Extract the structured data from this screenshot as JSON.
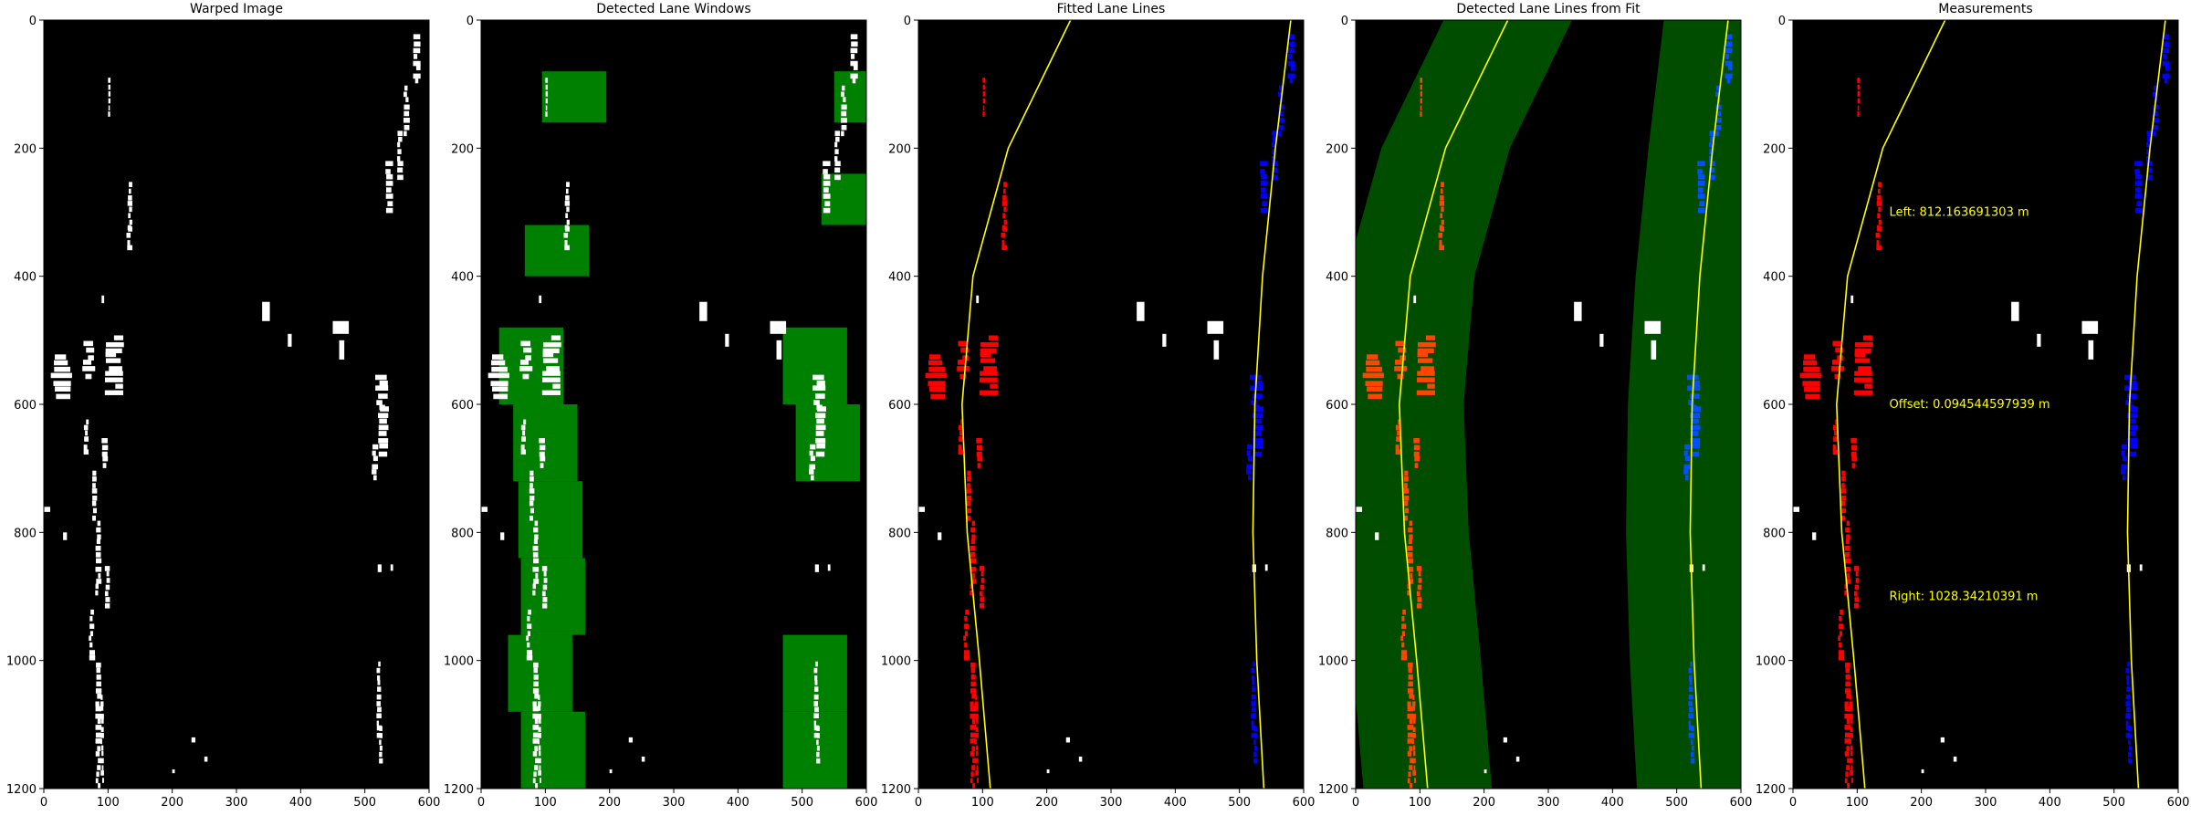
{
  "chart_data": [
    {
      "type": "image",
      "title": "Warped Image",
      "xlim": [
        0,
        600
      ],
      "ylim": [
        1200,
        0
      ],
      "xticks": [
        0,
        100,
        200,
        300,
        400,
        500,
        600
      ],
      "yticks": [
        0,
        200,
        400,
        600,
        800,
        1000,
        1200
      ]
    },
    {
      "type": "image",
      "title": "Detected Lane Windows",
      "xlim": [
        0,
        600
      ],
      "ylim": [
        1200,
        0
      ],
      "xticks": [
        0,
        100,
        200,
        300,
        400,
        500,
        600
      ],
      "yticks": [
        0,
        200,
        400,
        600,
        800,
        1000,
        1200
      ],
      "window_color": "#008000",
      "windows": [
        {
          "lane": "left",
          "x": [
            28,
            128
          ],
          "y": [
            480,
            600
          ]
        },
        {
          "lane": "left",
          "x": [
            50,
            150
          ],
          "y": [
            600,
            720
          ]
        },
        {
          "lane": "left",
          "x": [
            58,
            158
          ],
          "y": [
            720,
            840
          ]
        },
        {
          "lane": "left",
          "x": [
            62,
            162
          ],
          "y": [
            840,
            960
          ]
        },
        {
          "lane": "left",
          "x": [
            42,
            142
          ],
          "y": [
            960,
            1080
          ]
        },
        {
          "lane": "left",
          "x": [
            62,
            162
          ],
          "y": [
            1080,
            1200
          ]
        },
        {
          "lane": "left",
          "x": [
            95,
            195
          ],
          "y": [
            80,
            160
          ]
        },
        {
          "lane": "left",
          "x": [
            68,
            168
          ],
          "y": [
            320,
            400
          ]
        },
        {
          "lane": "right",
          "x": [
            470,
            570
          ],
          "y": [
            480,
            600
          ]
        },
        {
          "lane": "right",
          "x": [
            490,
            590
          ],
          "y": [
            600,
            720
          ]
        },
        {
          "lane": "right",
          "x": [
            470,
            570
          ],
          "y": [
            960,
            1080
          ]
        },
        {
          "lane": "right",
          "x": [
            470,
            570
          ],
          "y": [
            1080,
            1200
          ]
        },
        {
          "lane": "right",
          "x": [
            550,
            650
          ],
          "y": [
            80,
            160
          ]
        },
        {
          "lane": "right",
          "x": [
            530,
            630
          ],
          "y": [
            240,
            320
          ]
        }
      ]
    },
    {
      "type": "line",
      "title": "Fitted Lane Lines",
      "xlim": [
        0,
        600
      ],
      "ylim": [
        1200,
        0
      ],
      "xticks": [
        0,
        100,
        200,
        300,
        400,
        500,
        600
      ],
      "yticks": [
        0,
        200,
        400,
        600,
        800,
        1000,
        1200
      ],
      "series": [
        {
          "lane": "left",
          "color": "#ffff00",
          "y": [
            0,
            200,
            400,
            600,
            800,
            1000,
            1200
          ],
          "x": [
            237,
            140,
            85,
            68,
            76,
            95,
            112
          ]
        },
        {
          "lane": "right",
          "color": "#ffff00",
          "y": [
            0,
            200,
            400,
            600,
            800,
            1000,
            1200
          ],
          "x": [
            580,
            556,
            536,
            524,
            521,
            527,
            538
          ]
        }
      ]
    },
    {
      "type": "line",
      "title": "Detected Lane Lines from Fit",
      "xlim": [
        0,
        600
      ],
      "ylim": [
        1200,
        0
      ],
      "xticks": [
        0,
        100,
        200,
        300,
        400,
        500,
        600
      ],
      "yticks": [
        0,
        200,
        400,
        600,
        800,
        1000,
        1200
      ],
      "margin_color": "#004d00",
      "margin": 100,
      "series": [
        {
          "lane": "left",
          "color": "#ffff00",
          "y": [
            0,
            200,
            400,
            600,
            800,
            1000,
            1200
          ],
          "x": [
            237,
            140,
            85,
            68,
            76,
            95,
            112
          ]
        },
        {
          "lane": "right",
          "color": "#ffff00",
          "y": [
            0,
            200,
            400,
            600,
            800,
            1000,
            1200
          ],
          "x": [
            580,
            556,
            536,
            524,
            521,
            527,
            538
          ]
        }
      ]
    },
    {
      "type": "line",
      "title": "Measurements",
      "xlim": [
        0,
        600
      ],
      "ylim": [
        1200,
        0
      ],
      "xticks": [
        0,
        100,
        200,
        300,
        400,
        500,
        600
      ],
      "yticks": [
        0,
        200,
        400,
        600,
        800,
        1000,
        1200
      ],
      "series": [
        {
          "lane": "left",
          "color": "#ffff00",
          "y": [
            0,
            200,
            400,
            600,
            800,
            1000,
            1200
          ],
          "x": [
            237,
            140,
            85,
            68,
            76,
            95,
            112
          ]
        },
        {
          "lane": "right",
          "color": "#ffff00",
          "y": [
            0,
            200,
            400,
            600,
            800,
            1000,
            1200
          ],
          "x": [
            580,
            556,
            536,
            524,
            521,
            527,
            538
          ]
        }
      ],
      "annotations": [
        {
          "text": "Left: 812.163691303 m",
          "x": 150,
          "y": 300
        },
        {
          "text": "Offset: 0.094544597939 m",
          "x": 150,
          "y": 600
        },
        {
          "text": "Right: 1028.34210391 m",
          "x": 150,
          "y": 900
        }
      ]
    }
  ],
  "colors": {
    "background": "#000000",
    "binary_pixels": "#ffffff",
    "left_lane_pixels": "#ff0000",
    "left_lane_pixels_on_margin": "#ff4500",
    "right_lane_pixels": "#0000ff",
    "right_lane_pixels_on_margin": "#0050ff",
    "fit_line": "#ffff00",
    "annotation_text": "#ffff00"
  }
}
